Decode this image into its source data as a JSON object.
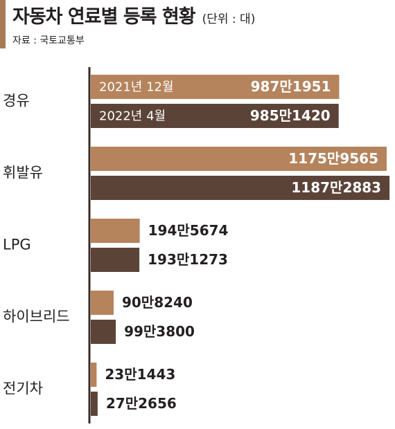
{
  "header": {
    "title": "자동차 연료별 등록 현황",
    "unit": "(단위 : 대)",
    "source": "자료 : 국토교통부"
  },
  "colors": {
    "accent": "#a77b58",
    "series_2021": "#b5835c",
    "series_2022": "#5b4338",
    "axis": "#3b2b26"
  },
  "chart_data": {
    "type": "bar",
    "orientation": "horizontal",
    "categories": [
      "경유",
      "휘발유",
      "LPG",
      "하이브리드",
      "전기차"
    ],
    "series": [
      {
        "name": "2021년 12월",
        "values": [
          9871951,
          11759565,
          1945674,
          908240,
          231443
        ],
        "labels": [
          "987만1951",
          "1175만9565",
          "194만5674",
          "90만8240",
          "23만1443"
        ]
      },
      {
        "name": "2022년 4월",
        "values": [
          9851420,
          11872883,
          1931273,
          993800,
          272656
        ],
        "labels": [
          "985만1420",
          "1187만2883",
          "193만1273",
          "99만3800",
          "27만2656"
        ]
      }
    ],
    "legend_placement": "inside-first-bars",
    "grid": false
  }
}
